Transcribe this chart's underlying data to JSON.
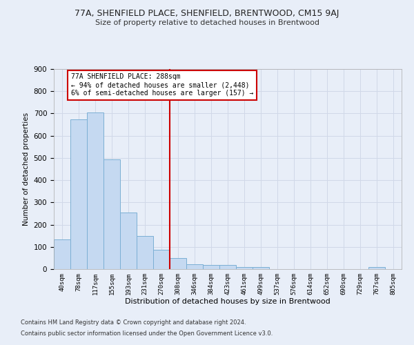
{
  "title1": "77A, SHENFIELD PLACE, SHENFIELD, BRENTWOOD, CM15 9AJ",
  "title2": "Size of property relative to detached houses in Brentwood",
  "xlabel": "Distribution of detached houses by size in Brentwood",
  "ylabel": "Number of detached properties",
  "bar_labels": [
    "40sqm",
    "78sqm",
    "117sqm",
    "155sqm",
    "193sqm",
    "231sqm",
    "270sqm",
    "308sqm",
    "346sqm",
    "384sqm",
    "423sqm",
    "461sqm",
    "499sqm",
    "537sqm",
    "576sqm",
    "614sqm",
    "652sqm",
    "690sqm",
    "729sqm",
    "767sqm",
    "805sqm"
  ],
  "bar_values": [
    135,
    675,
    705,
    492,
    255,
    150,
    88,
    50,
    22,
    18,
    18,
    10,
    10,
    0,
    0,
    0,
    0,
    0,
    0,
    10,
    0
  ],
  "bar_color": "#c5d9f1",
  "bar_edgecolor": "#7bafd4",
  "property_line_x": 6.5,
  "annotation_line1": "77A SHENFIELD PLACE: 288sqm",
  "annotation_line2": "← 94% of detached houses are smaller (2,448)",
  "annotation_line3": "6% of semi-detached houses are larger (157) →",
  "vline_color": "#cc0000",
  "annotation_box_facecolor": "#ffffff",
  "annotation_box_edgecolor": "#cc0000",
  "background_color": "#e8eef8",
  "grid_color": "#d0d8e8",
  "ylim": [
    0,
    900
  ],
  "yticks": [
    0,
    100,
    200,
    300,
    400,
    500,
    600,
    700,
    800,
    900
  ],
  "footer1": "Contains HM Land Registry data © Crown copyright and database right 2024.",
  "footer2": "Contains public sector information licensed under the Open Government Licence v3.0."
}
